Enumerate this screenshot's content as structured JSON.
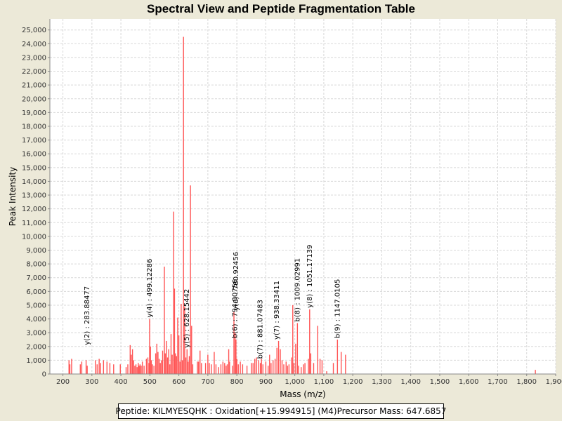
{
  "chart_data": {
    "type": "bar",
    "title": "Spectral View and Peptide Fragmentation Table",
    "xlabel": "Mass (m/z)",
    "ylabel": "Peak Intensity",
    "xlim": [
      155,
      1900
    ],
    "ylim": [
      0,
      25800
    ],
    "grid": true,
    "bar_color": "#ff5555",
    "x_ticks": [
      200,
      300,
      400,
      500,
      600,
      700,
      800,
      900,
      1000,
      1100,
      1200,
      1300,
      1400,
      1500,
      1600,
      1700,
      1800,
      1900
    ],
    "x_tick_labels": [
      "200",
      "300",
      "400",
      "500",
      "600",
      "700",
      "800",
      "900",
      "1,000",
      "1,100",
      "1,200",
      "1,300",
      "1,400",
      "1,500",
      "1,600",
      "1,700",
      "1,800",
      "1,900"
    ],
    "y_ticks": [
      0,
      1000,
      2000,
      3000,
      4000,
      5000,
      6000,
      7000,
      8000,
      9000,
      10000,
      11000,
      12000,
      13000,
      14000,
      15000,
      16000,
      17000,
      18000,
      19000,
      20000,
      21000,
      22000,
      23000,
      24000,
      25000
    ],
    "y_tick_labels": [
      "0",
      "1,000",
      "2,000",
      "3,000",
      "4,000",
      "5,000",
      "6,000",
      "7,000",
      "8,000",
      "9,000",
      "10,000",
      "11,000",
      "12,000",
      "13,000",
      "14,000",
      "15,000",
      "16,000",
      "17,000",
      "18,000",
      "19,000",
      "20,000",
      "21,000",
      "22,000",
      "23,000",
      "24,000",
      "25,000"
    ],
    "peaks": [
      [
        221,
        1000
      ],
      [
        224,
        700
      ],
      [
        230,
        1100
      ],
      [
        260,
        700
      ],
      [
        265,
        900
      ],
      [
        280,
        1000
      ],
      [
        283.8,
        600
      ],
      [
        312,
        1000
      ],
      [
        318,
        700
      ],
      [
        325,
        1100
      ],
      [
        330,
        800
      ],
      [
        340,
        1000
      ],
      [
        352,
        900
      ],
      [
        362,
        800
      ],
      [
        375,
        700
      ],
      [
        398,
        700
      ],
      [
        418,
        500
      ],
      [
        424,
        700
      ],
      [
        432,
        2100
      ],
      [
        436,
        1400
      ],
      [
        440,
        1800
      ],
      [
        444,
        1000
      ],
      [
        448,
        600
      ],
      [
        452,
        700
      ],
      [
        456,
        500
      ],
      [
        460,
        800
      ],
      [
        463,
        600
      ],
      [
        466,
        700
      ],
      [
        470,
        600
      ],
      [
        474,
        900
      ],
      [
        480,
        600
      ],
      [
        488,
        1100
      ],
      [
        493,
        1200
      ],
      [
        497,
        800
      ],
      [
        499.1,
        4000
      ],
      [
        502,
        2000
      ],
      [
        505,
        1000
      ],
      [
        509,
        700
      ],
      [
        514,
        600
      ],
      [
        520,
        1500
      ],
      [
        524,
        2200
      ],
      [
        528,
        1600
      ],
      [
        532,
        1100
      ],
      [
        536,
        800
      ],
      [
        540,
        1000
      ],
      [
        544,
        1700
      ],
      [
        550,
        7800
      ],
      [
        553,
        1500
      ],
      [
        557,
        2400
      ],
      [
        561,
        1200
      ],
      [
        565,
        1800
      ],
      [
        569,
        700
      ],
      [
        573,
        2900
      ],
      [
        577,
        1400
      ],
      [
        582,
        11800
      ],
      [
        585,
        6200
      ],
      [
        588,
        1500
      ],
      [
        592,
        1300
      ],
      [
        596,
        4100
      ],
      [
        600,
        2800
      ],
      [
        604,
        900
      ],
      [
        608,
        5100
      ],
      [
        612,
        1000
      ],
      [
        616,
        24500
      ],
      [
        620,
        4900
      ],
      [
        624,
        1200
      ],
      [
        628.2,
        1800
      ],
      [
        632,
        900
      ],
      [
        636,
        1300
      ],
      [
        640,
        13700
      ],
      [
        644,
        3500
      ],
      [
        648,
        700
      ],
      [
        664,
        900
      ],
      [
        668,
        900
      ],
      [
        673,
        1700
      ],
      [
        678,
        800
      ],
      [
        692,
        800
      ],
      [
        700,
        1400
      ],
      [
        705,
        800
      ],
      [
        712,
        700
      ],
      [
        722,
        1600
      ],
      [
        728,
        700
      ],
      [
        737,
        500
      ],
      [
        745,
        700
      ],
      [
        752,
        900
      ],
      [
        758,
        800
      ],
      [
        763,
        600
      ],
      [
        767,
        700
      ],
      [
        772,
        1800
      ],
      [
        775,
        900
      ],
      [
        785,
        600
      ],
      [
        790,
        4500
      ],
      [
        794,
        3000
      ],
      [
        797,
        2500
      ],
      [
        800,
        1100
      ],
      [
        805,
        700
      ],
      [
        812,
        900
      ],
      [
        820,
        700
      ],
      [
        835,
        600
      ],
      [
        850,
        800
      ],
      [
        856,
        800
      ],
      [
        862,
        1100
      ],
      [
        868,
        1200
      ],
      [
        875,
        1000
      ],
      [
        881.1,
        800
      ],
      [
        885,
        1100
      ],
      [
        890,
        700
      ],
      [
        900,
        900
      ],
      [
        908,
        600
      ],
      [
        913,
        1400
      ],
      [
        918,
        800
      ],
      [
        925,
        1000
      ],
      [
        932,
        1100
      ],
      [
        938.3,
        1900
      ],
      [
        944,
        2400
      ],
      [
        950,
        1800
      ],
      [
        956,
        1000
      ],
      [
        962,
        700
      ],
      [
        970,
        900
      ],
      [
        975,
        600
      ],
      [
        980,
        700
      ],
      [
        989,
        1200
      ],
      [
        993,
        5000
      ],
      [
        997,
        800
      ],
      [
        1003,
        2200
      ],
      [
        1009,
        3700
      ],
      [
        1013,
        600
      ],
      [
        1022,
        500
      ],
      [
        1030,
        700
      ],
      [
        1035,
        800
      ],
      [
        1047,
        1100
      ],
      [
        1051.2,
        4700
      ],
      [
        1055,
        1500
      ],
      [
        1065,
        800
      ],
      [
        1079,
        3500
      ],
      [
        1087,
        1100
      ],
      [
        1094,
        1000
      ],
      [
        1110,
        200
      ],
      [
        1133,
        800
      ],
      [
        1147.1,
        2500
      ],
      [
        1160,
        1600
      ],
      [
        1175,
        1400
      ],
      [
        1830,
        300
      ]
    ],
    "annotations": [
      {
        "mz": 283.8,
        "label": "y(2) : 283.88477",
        "top": 2000
      },
      {
        "mz": 499.1,
        "label": "y(4) : 499.12286",
        "top": 4000
      },
      {
        "mz": 628.2,
        "label": "y(5) : 628.15442",
        "top": 1800
      },
      {
        "mz": 794.0,
        "label": "b(6) : 794.90756",
        "top": 2500
      },
      {
        "mz": 797.0,
        "label": "y(6) : 780.92456",
        "top": 4500
      },
      {
        "mz": 881.1,
        "label": "b(7) : 881.07483",
        "top": 1000
      },
      {
        "mz": 938.3,
        "label": "y(7) : 938.33411",
        "top": 2400
      },
      {
        "mz": 1009.0,
        "label": "b(8) : 1009.02991",
        "top": 3700
      },
      {
        "mz": 1051.2,
        "label": "y(8) : 1051.17139",
        "top": 4700
      },
      {
        "mz": 1147.1,
        "label": "b(9) : 1147.0105",
        "top": 2500
      }
    ]
  },
  "info": {
    "peptide": "Peptide: KILMYESQHK : Oxidation[+15.994915] (M4)",
    "precursor": "Precursor Mass: 647.6857"
  }
}
